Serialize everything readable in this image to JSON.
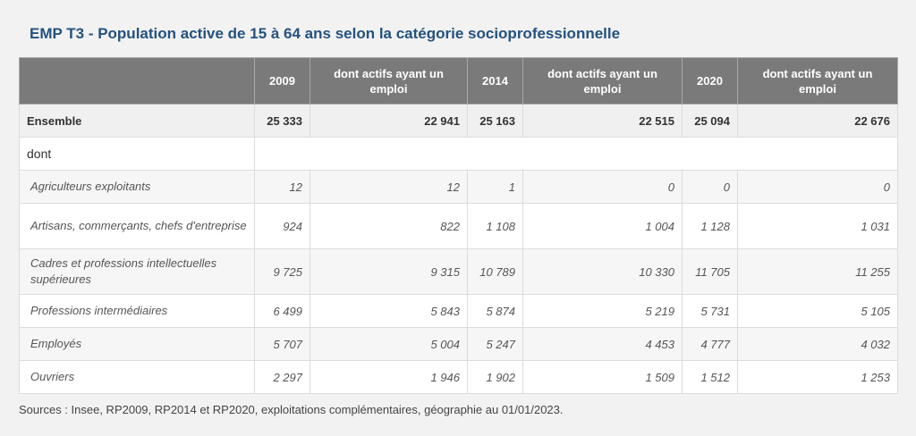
{
  "title": "EMP T3 - Population active de 15 à 64 ans selon la catégorie socioprofessionnelle",
  "columns": [
    "",
    "2009",
    "dont actifs ayant un emploi",
    "2014",
    "dont actifs ayant un emploi",
    "2020",
    "dont actifs ayant un emploi"
  ],
  "ensemble": {
    "label": "Ensemble",
    "values": [
      "25 333",
      "22 941",
      "25 163",
      "22 515",
      "25 094",
      "22 676"
    ]
  },
  "dont_label": "dont",
  "rows": [
    {
      "label": "Agriculteurs exploitants",
      "values": [
        "12",
        "12",
        "1",
        "0",
        "0",
        "0"
      ]
    },
    {
      "label": "Artisans, commerçants, chefs d'entreprise",
      "values": [
        "924",
        "822",
        "1 108",
        "1 004",
        "1 128",
        "1 031"
      ]
    },
    {
      "label": "Cadres et professions intellectuelles supérieures",
      "values": [
        "9 725",
        "9 315",
        "10 789",
        "10 330",
        "11 705",
        "11 255"
      ]
    },
    {
      "label": "Professions intermédiaires",
      "values": [
        "6 499",
        "5 843",
        "5 874",
        "5 219",
        "5 731",
        "5 105"
      ]
    },
    {
      "label": "Employés",
      "values": [
        "5 707",
        "5 004",
        "5 247",
        "4 453",
        "4 777",
        "4 032"
      ]
    },
    {
      "label": "Ouvriers",
      "values": [
        "2 297",
        "1 946",
        "1 902",
        "1 509",
        "1 512",
        "1 253"
      ]
    }
  ],
  "sources": "Sources : Insee, RP2009, RP2014 et RP2020, exploitations complémentaires, géographie au 01/01/2023."
}
